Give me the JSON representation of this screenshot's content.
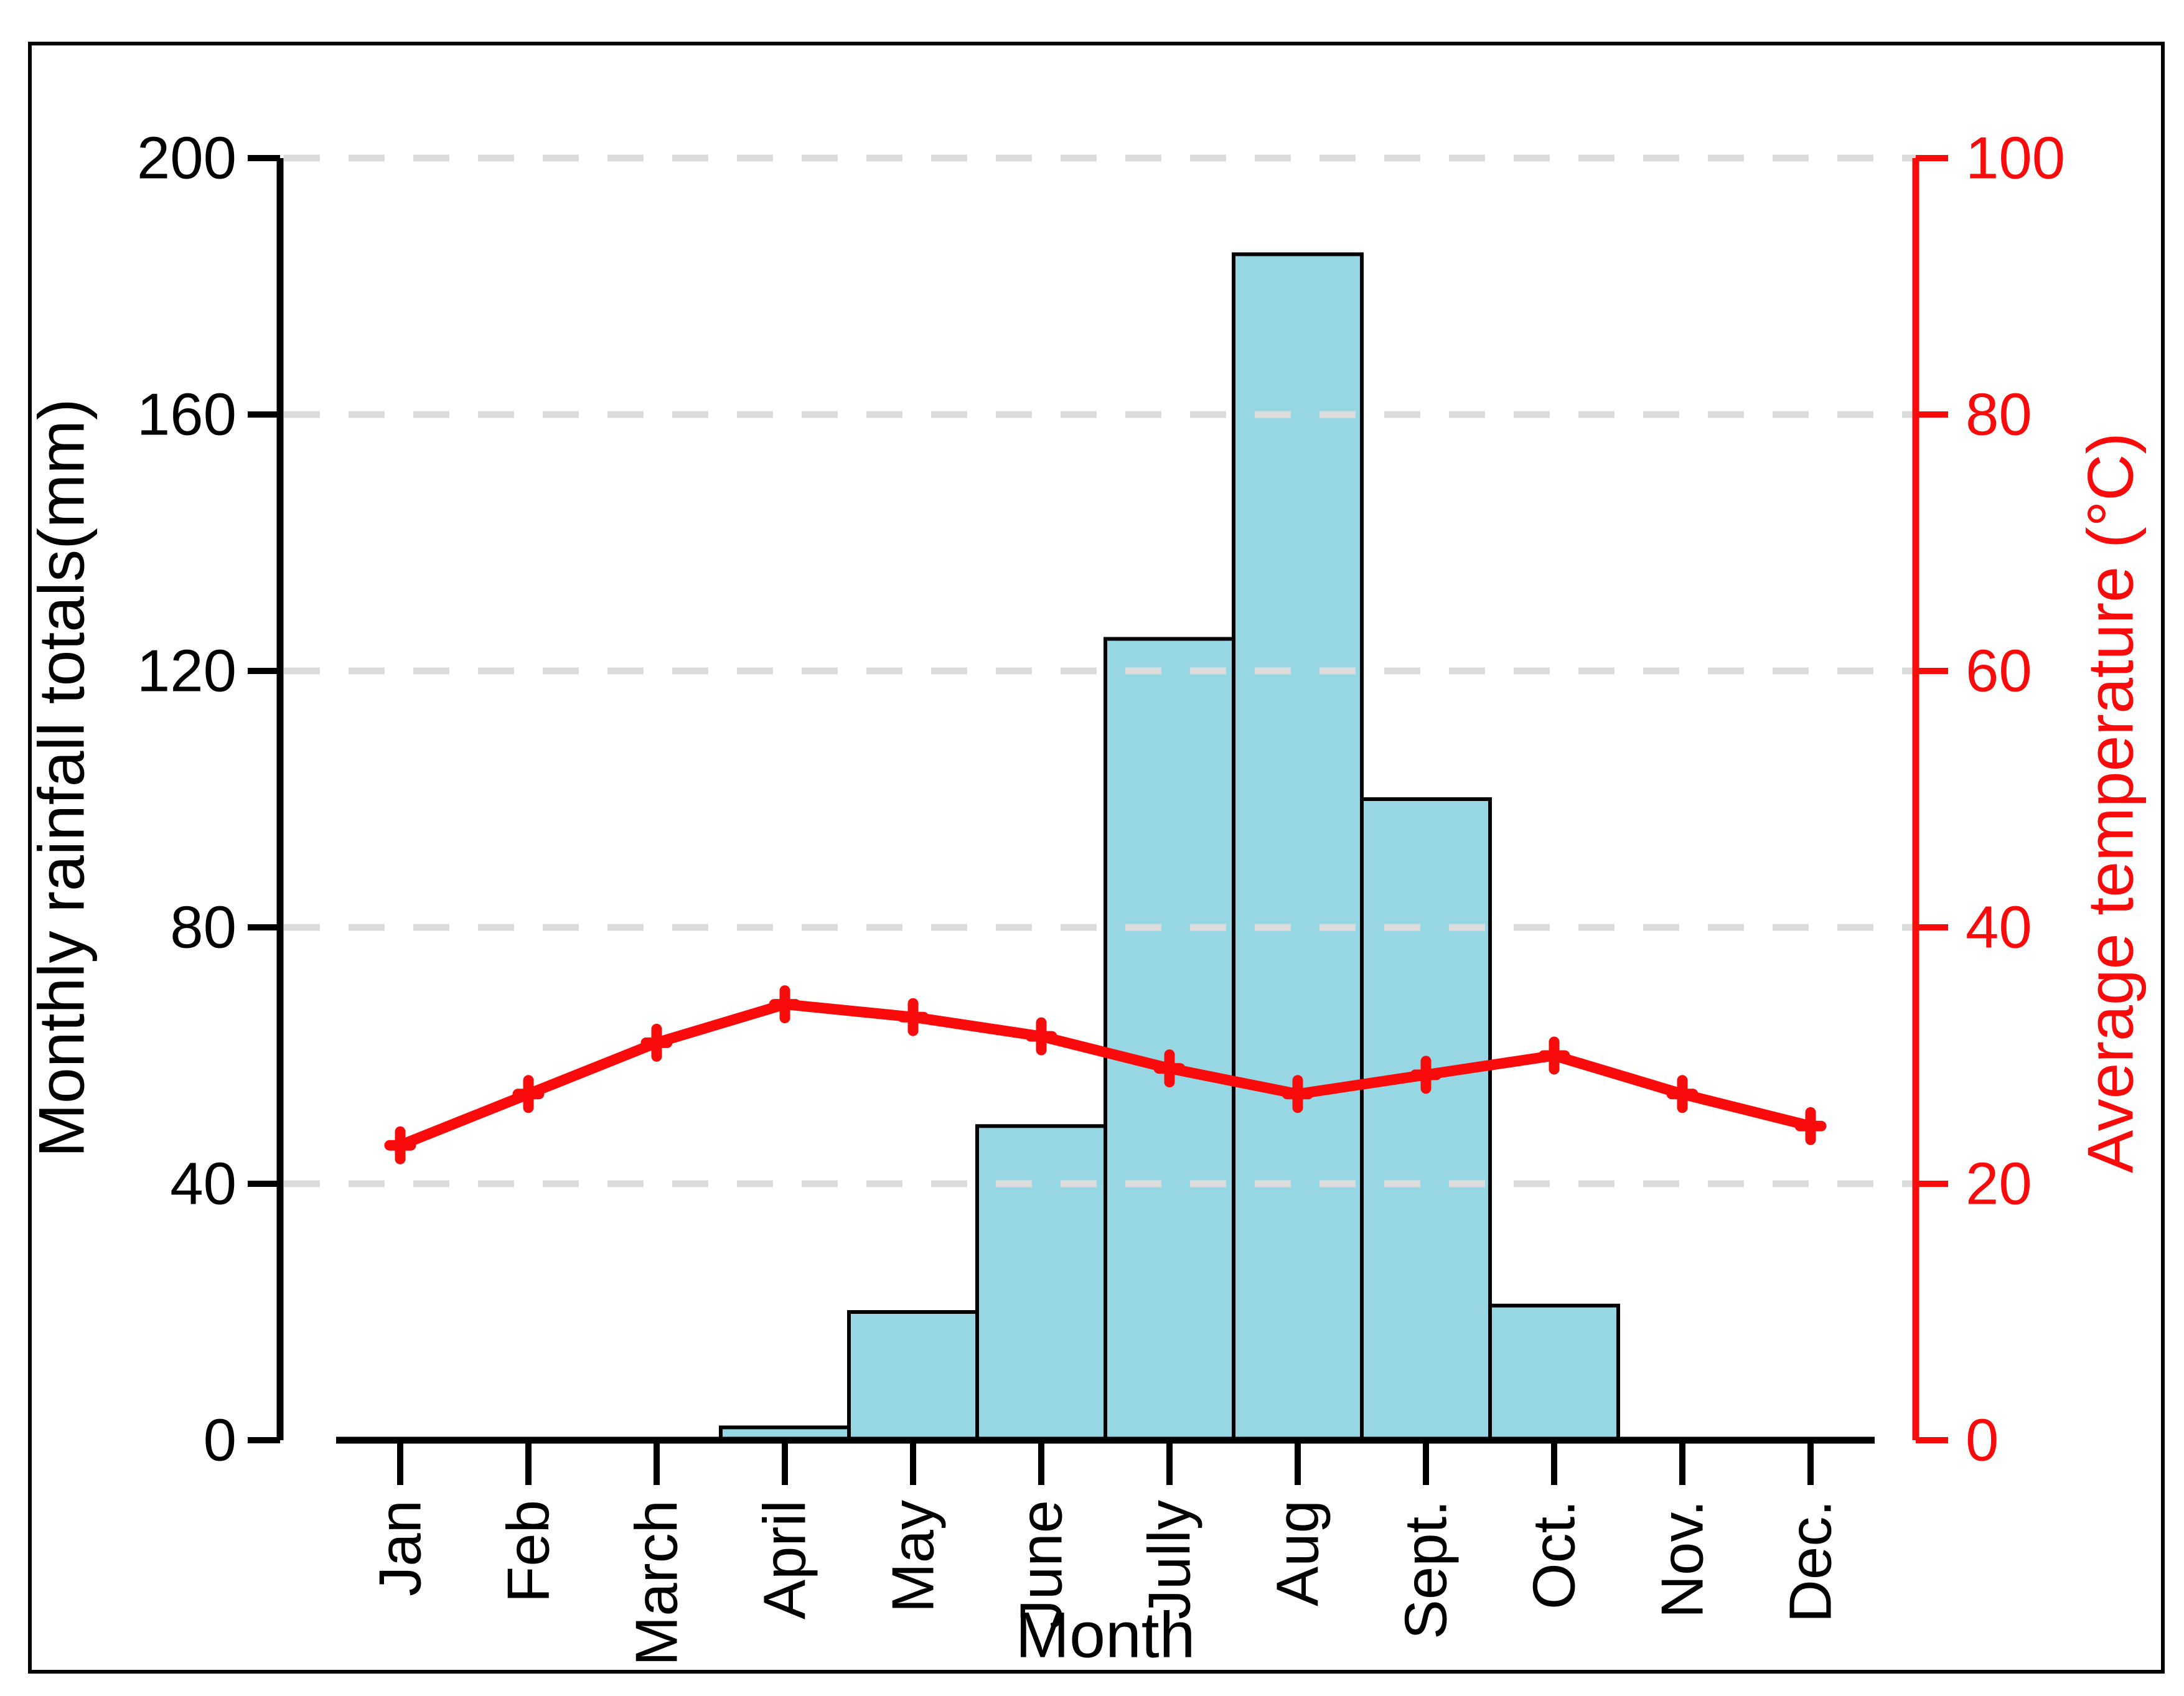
{
  "chart_data": {
    "type": "bar+line",
    "categories": [
      "Jan",
      "Feb",
      "March",
      "April",
      "May",
      "June",
      "Jully",
      "Aug",
      "Sept.",
      "Oct.",
      "Nov.",
      "Dec."
    ],
    "xlabel": "Month",
    "series": [
      {
        "name": "Monthly rainfall totals",
        "type": "bar",
        "axis": "left",
        "unit": "mm",
        "color": "#96d7e3",
        "border_color": "#000000",
        "values": [
          0,
          0,
          0,
          2,
          20,
          49,
          125,
          185,
          100,
          21,
          0,
          0
        ]
      },
      {
        "name": "Average temperature",
        "type": "line",
        "axis": "right",
        "unit": "°C",
        "color": "#fa0b0b",
        "marker": "plus",
        "values": [
          23,
          27,
          31,
          34,
          33,
          31.5,
          29,
          27,
          28.5,
          30,
          27,
          24.5
        ]
      }
    ],
    "left_axis": {
      "label": "Monthly rainfall totals(mm)",
      "min": 0,
      "max": 200,
      "ticks": [
        "0",
        "40",
        "80",
        "120",
        "160",
        "200"
      ],
      "color": "#000000"
    },
    "right_axis": {
      "label": "Average temperature (°C)",
      "min": 0,
      "max": 100,
      "ticks": [
        "0",
        "20",
        "40",
        "60",
        "80",
        "100"
      ],
      "color": "#fa0b0b"
    },
    "grid": {
      "show": true,
      "style": "dashed",
      "color": "#dcdcdc"
    },
    "title": "",
    "legend_position": "none"
  }
}
